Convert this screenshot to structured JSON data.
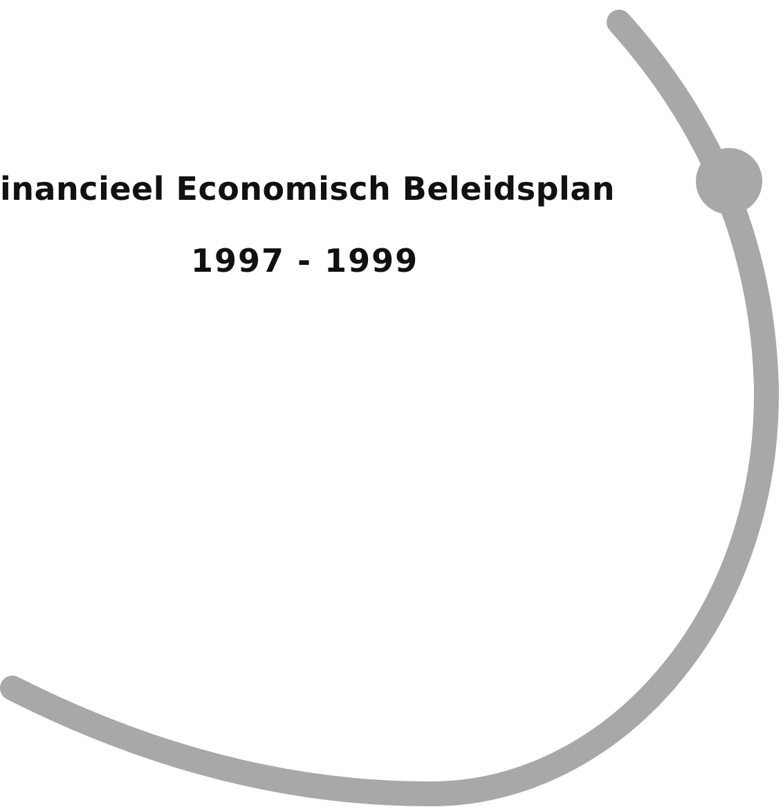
{
  "header": {
    "title": "inancieel Economisch Beleidsplan",
    "period": "1997 - 1999"
  }
}
